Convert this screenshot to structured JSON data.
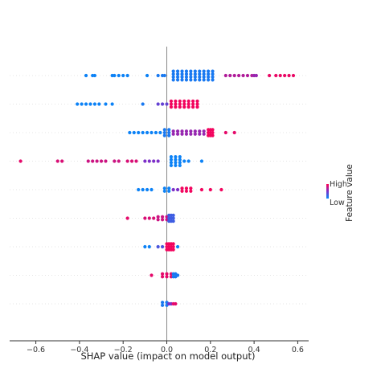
{
  "chart_data": {
    "type": "scatter",
    "subtype": "beeswarm",
    "title": "",
    "xlabel": "SHAP value (impact on model output)",
    "ylabel": "",
    "xlim": [
      -0.72,
      0.65
    ],
    "xticks": [
      -0.6,
      -0.4,
      -0.2,
      0.0,
      0.2,
      0.4,
      0.6
    ],
    "xtick_labels": [
      "−0.6",
      "−0.4",
      "−0.2",
      "0.0",
      "0.2",
      "0.4",
      "0.6"
    ],
    "zero_line": true,
    "colorbar": {
      "title": "Feature value",
      "high_label": "High",
      "low_label": "Low",
      "high_color": "#ff0052",
      "low_color": "#008bfb"
    },
    "rows": [
      {
        "clusters": [
          {
            "x": [
              -0.37,
              -0.34,
              -0.33
            ],
            "v": 0.05
          },
          {
            "x": [
              -0.25,
              -0.24,
              -0.22,
              -0.2,
              -0.18
            ],
            "v": 0.05
          },
          {
            "x": [
              -0.09
            ],
            "v": 0.05
          },
          {
            "x": [
              -0.04,
              -0.02,
              -0.01
            ],
            "v": 0.1
          },
          {
            "x": [
              0.03,
              0.05,
              0.07,
              0.09,
              0.11,
              0.13,
              0.15,
              0.17,
              0.19,
              0.21
            ],
            "v": 0.1,
            "spread": 4
          },
          {
            "x": [
              0.27,
              0.29,
              0.31,
              0.33,
              0.35,
              0.37,
              0.39
            ],
            "v": 0.7
          },
          {
            "x": [
              0.4,
              0.41
            ],
            "v": 0.6
          },
          {
            "x": [
              0.47,
              0.5,
              0.52,
              0.54,
              0.56,
              0.58
            ],
            "v": 0.92
          }
        ]
      },
      {
        "clusters": [
          {
            "x": [
              -0.41,
              -0.39,
              -0.37,
              -0.35,
              -0.33,
              -0.31
            ],
            "v": 0.05
          },
          {
            "x": [
              -0.28,
              -0.25
            ],
            "v": 0.05
          },
          {
            "x": [
              -0.11
            ],
            "v": 0.1
          },
          {
            "x": [
              -0.04,
              -0.02,
              0.0
            ],
            "v": 0.4
          },
          {
            "x": [
              0.02,
              0.04,
              0.06,
              0.08,
              0.1,
              0.12,
              0.14
            ],
            "v": 0.95,
            "spread": 3
          }
        ]
      },
      {
        "clusters": [
          {
            "x": [
              -0.17,
              -0.15,
              -0.13,
              -0.11,
              -0.09,
              -0.07,
              -0.05,
              -0.03
            ],
            "v": 0.05
          },
          {
            "x": [
              -0.01,
              0.01
            ],
            "v": 0.1,
            "spread": 3
          },
          {
            "x": [
              0.03,
              0.05,
              0.07,
              0.09,
              0.11,
              0.13,
              0.15,
              0.17
            ],
            "v": 0.6,
            "spread": 2
          },
          {
            "x": [
              0.19,
              0.2,
              0.21
            ],
            "v": 0.95,
            "spread": 3
          },
          {
            "x": [
              0.27,
              0.31
            ],
            "v": 0.9
          }
        ]
      },
      {
        "clusters": [
          {
            "x": [
              -0.67
            ],
            "v": 0.9
          },
          {
            "x": [
              -0.5,
              -0.48
            ],
            "v": 0.85
          },
          {
            "x": [
              -0.36,
              -0.34,
              -0.32,
              -0.3,
              -0.28
            ],
            "v": 0.8
          },
          {
            "x": [
              -0.24,
              -0.22
            ],
            "v": 0.8
          },
          {
            "x": [
              -0.18,
              -0.16,
              -0.14
            ],
            "v": 0.85
          },
          {
            "x": [
              -0.1,
              -0.08,
              -0.06,
              -0.04
            ],
            "v": 0.5
          },
          {
            "x": [
              0.02,
              0.04,
              0.06
            ],
            "v": 0.05,
            "spread": 4
          },
          {
            "x": [
              0.08,
              0.1
            ],
            "v": 0.05
          },
          {
            "x": [
              0.16
            ],
            "v": 0.05
          }
        ]
      },
      {
        "clusters": [
          {
            "x": [
              -0.13,
              -0.11,
              -0.09,
              -0.07
            ],
            "v": 0.05
          },
          {
            "x": [
              -0.01,
              0.01
            ],
            "v": 0.05,
            "spread": 2
          },
          {
            "x": [
              0.03,
              0.05
            ],
            "v": 0.5
          },
          {
            "x": [
              0.07,
              0.09,
              0.11
            ],
            "v": 0.95,
            "spread": 2
          },
          {
            "x": [
              0.16,
              0.2,
              0.25
            ],
            "v": 0.95
          }
        ]
      },
      {
        "clusters": [
          {
            "x": [
              -0.18
            ],
            "v": 0.9
          },
          {
            "x": [
              -0.1,
              -0.08,
              -0.06
            ],
            "v": 0.85
          },
          {
            "x": [
              -0.04,
              -0.02,
              0.0
            ],
            "v": 0.8,
            "spread": 2
          },
          {
            "x": [
              0.01,
              0.02,
              0.03
            ],
            "v": 0.25,
            "spread": 3
          }
        ]
      },
      {
        "clusters": [
          {
            "x": [
              -0.1,
              -0.08
            ],
            "v": 0.05
          },
          {
            "x": [
              -0.04,
              -0.02
            ],
            "v": 0.3
          },
          {
            "x": [
              0.0,
              0.01,
              0.02,
              0.03
            ],
            "v": 0.95,
            "spread": 3
          },
          {
            "x": [
              0.05
            ],
            "v": 0.05
          }
        ]
      },
      {
        "clusters": [
          {
            "x": [
              -0.07
            ],
            "v": 0.9
          },
          {
            "x": [
              -0.02,
              0.0,
              0.02
            ],
            "v": 0.9,
            "spread": 2
          },
          {
            "x": [
              0.03,
              0.04
            ],
            "v": 0.1,
            "spread": 2
          },
          {
            "x": [
              0.05
            ],
            "v": 0.1
          }
        ]
      },
      {
        "clusters": [
          {
            "x": [
              -0.02,
              0.0
            ],
            "v": 0.1,
            "spread": 2
          },
          {
            "x": [
              0.01,
              0.02
            ],
            "v": 0.5
          },
          {
            "x": [
              0.03,
              0.04
            ],
            "v": 0.9
          }
        ]
      }
    ]
  }
}
